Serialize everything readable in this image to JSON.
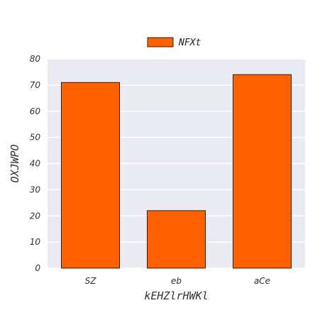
{
  "chart_data": {
    "type": "bar",
    "categories": [
      "SZ",
      "eb",
      "aCe"
    ],
    "series": [
      {
        "name": "NFXt",
        "values": [
          71,
          22,
          74
        ]
      }
    ],
    "xlabel": "kEHZlrHWKl",
    "ylabel": "OXJWPO",
    "ylim": [
      0,
      80
    ],
    "yticks": [
      0,
      10,
      20,
      30,
      40,
      50,
      60,
      70,
      80
    ],
    "grid": true,
    "legend_position": "top-center",
    "colors": {
      "bar": "#ff6100",
      "bar_edge": "#000000",
      "plot_background": "#eaeaf2",
      "grid": "#ffffff"
    }
  }
}
